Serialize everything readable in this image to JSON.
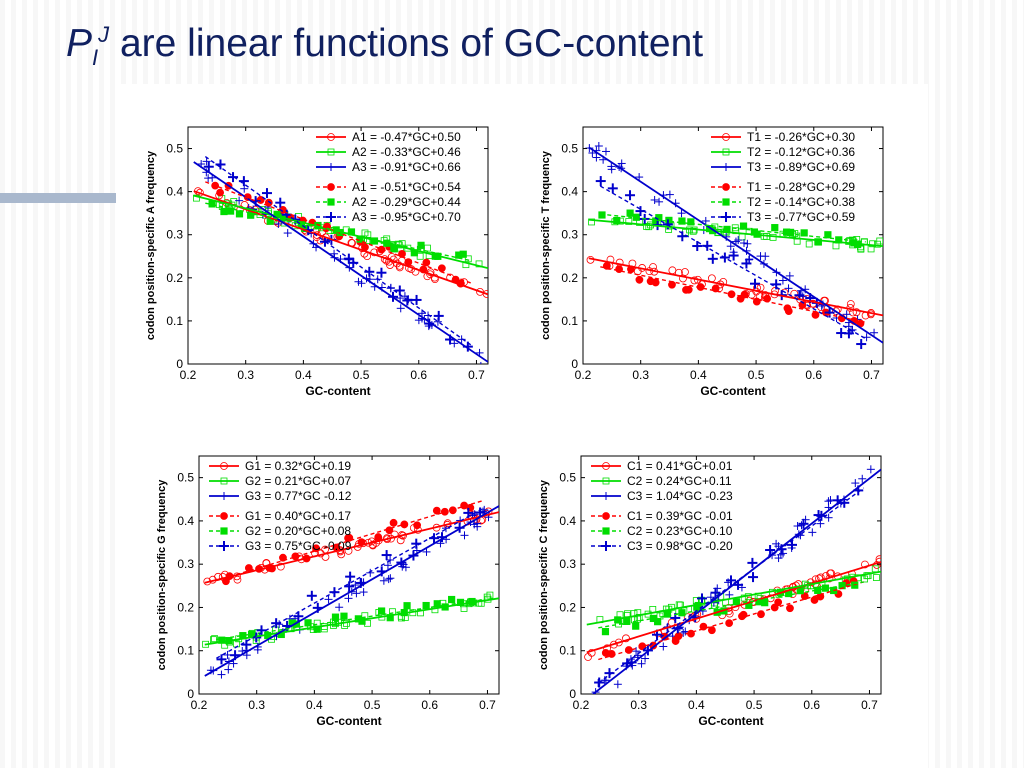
{
  "slide": {
    "title_sym": "P",
    "title_sub": "I",
    "title_sup": "J",
    "title_text": " are linear functions of GC-content"
  },
  "chart_data": [
    {
      "type": "scatter",
      "id": "A",
      "ylabel": "codon position-specific A frequency",
      "xlabel": "GC-content",
      "xlim": [
        0.2,
        0.72
      ],
      "ylim": [
        0,
        0.55
      ],
      "xticks": [
        "0.2",
        "0.3",
        "0.4",
        "0.5",
        "0.6",
        "0.7"
      ],
      "yticks": [
        "0",
        "0.1",
        "0.2",
        "0.3",
        "0.4",
        "0.5"
      ],
      "legend": "top-right",
      "series": [
        {
          "name": "A1 = -0.47*GC+0.50",
          "codon": 1,
          "set": "open",
          "color": "#ff0000",
          "slope": -0.47,
          "intercept": 0.5
        },
        {
          "name": "A2 = -0.33*GC+0.46",
          "codon": 2,
          "set": "open",
          "color": "#00dd00",
          "slope": -0.33,
          "intercept": 0.46
        },
        {
          "name": "A3 = -0.91*GC+0.66",
          "codon": 3,
          "set": "open",
          "color": "#0000cc",
          "slope": -0.91,
          "intercept": 0.66
        },
        {
          "name": "A1 = -0.51*GC+0.54",
          "codon": 1,
          "set": "filled",
          "color": "#ff0000",
          "slope": -0.51,
          "intercept": 0.54
        },
        {
          "name": "A2 = -0.29*GC+0.44",
          "codon": 2,
          "set": "filled",
          "color": "#00dd00",
          "slope": -0.29,
          "intercept": 0.44
        },
        {
          "name": "A3 = -0.95*GC+0.70",
          "codon": 3,
          "set": "filled",
          "color": "#0000cc",
          "slope": -0.95,
          "intercept": 0.7
        }
      ]
    },
    {
      "type": "scatter",
      "id": "T",
      "ylabel": "codon position-specific T frequency",
      "xlabel": "GC-content",
      "xlim": [
        0.2,
        0.72
      ],
      "ylim": [
        0,
        0.55
      ],
      "xticks": [
        "0.2",
        "0.3",
        "0.4",
        "0.5",
        "0.6",
        "0.7"
      ],
      "yticks": [
        "0",
        "0.1",
        "0.2",
        "0.3",
        "0.4",
        "0.5"
      ],
      "legend": "top-right",
      "series": [
        {
          "name": "T1 = -0.26*GC+0.30",
          "codon": 1,
          "set": "open",
          "color": "#ff0000",
          "slope": -0.26,
          "intercept": 0.3
        },
        {
          "name": "T2 = -0.12*GC+0.36",
          "codon": 2,
          "set": "open",
          "color": "#00dd00",
          "slope": -0.12,
          "intercept": 0.36
        },
        {
          "name": "T3 = -0.89*GC+0.69",
          "codon": 3,
          "set": "open",
          "color": "#0000cc",
          "slope": -0.89,
          "intercept": 0.69
        },
        {
          "name": "T1 = -0.28*GC+0.29",
          "codon": 1,
          "set": "filled",
          "color": "#ff0000",
          "slope": -0.28,
          "intercept": 0.29
        },
        {
          "name": "T2 = -0.14*GC+0.38",
          "codon": 2,
          "set": "filled",
          "color": "#00dd00",
          "slope": -0.14,
          "intercept": 0.38
        },
        {
          "name": "T3 = -0.77*GC+0.59",
          "codon": 3,
          "set": "filled",
          "color": "#0000cc",
          "slope": -0.77,
          "intercept": 0.59
        }
      ]
    },
    {
      "type": "scatter",
      "id": "G",
      "ylabel": "codon position-specific G frequency",
      "xlabel": "GC-content",
      "xlim": [
        0.2,
        0.72
      ],
      "ylim": [
        0,
        0.55
      ],
      "xticks": [
        "0.2",
        "0.3",
        "0.4",
        "0.5",
        "0.6",
        "0.7"
      ],
      "yticks": [
        "0",
        "0.1",
        "0.2",
        "0.3",
        "0.4",
        "0.5"
      ],
      "legend": "top-left",
      "series": [
        {
          "name": "G1 = 0.32*GC+0.19",
          "codon": 1,
          "set": "open",
          "color": "#ff0000",
          "slope": 0.32,
          "intercept": 0.19
        },
        {
          "name": "G2 = 0.21*GC+0.07",
          "codon": 2,
          "set": "open",
          "color": "#00dd00",
          "slope": 0.21,
          "intercept": 0.07
        },
        {
          "name": "G3 = 0.77*GC -0.12",
          "codon": 3,
          "set": "open",
          "color": "#0000cc",
          "slope": 0.77,
          "intercept": -0.12
        },
        {
          "name": "G1 = 0.40*GC+0.17",
          "codon": 1,
          "set": "filled",
          "color": "#ff0000",
          "slope": 0.4,
          "intercept": 0.17
        },
        {
          "name": "G2 = 0.20*GC+0.08",
          "codon": 2,
          "set": "filled",
          "color": "#00dd00",
          "slope": 0.2,
          "intercept": 0.08
        },
        {
          "name": "G3 = 0.75*GC -0.09",
          "codon": 3,
          "set": "filled",
          "color": "#0000cc",
          "slope": 0.75,
          "intercept": -0.09
        }
      ]
    },
    {
      "type": "scatter",
      "id": "C",
      "ylabel": "codon position-specific C frequency",
      "xlabel": "GC-content",
      "xlim": [
        0.2,
        0.72
      ],
      "ylim": [
        0,
        0.55
      ],
      "xticks": [
        "0.2",
        "0.3",
        "0.4",
        "0.5",
        "0.6",
        "0.7"
      ],
      "yticks": [
        "0",
        "0.1",
        "0.2",
        "0.3",
        "0.4",
        "0.5"
      ],
      "legend": "top-left",
      "series": [
        {
          "name": "C1 = 0.41*GC+0.01",
          "codon": 1,
          "set": "open",
          "color": "#ff0000",
          "slope": 0.41,
          "intercept": 0.01
        },
        {
          "name": "C2 = 0.24*GC+0.11",
          "codon": 2,
          "set": "open",
          "color": "#00dd00",
          "slope": 0.24,
          "intercept": 0.11
        },
        {
          "name": "C3 = 1.04*GC -0.23",
          "codon": 3,
          "set": "open",
          "color": "#0000cc",
          "slope": 1.04,
          "intercept": -0.23
        },
        {
          "name": "C1 = 0.39*GC -0.01",
          "codon": 1,
          "set": "filled",
          "color": "#ff0000",
          "slope": 0.39,
          "intercept": -0.01
        },
        {
          "name": "C2 = 0.23*GC+0.10",
          "codon": 2,
          "set": "filled",
          "color": "#00dd00",
          "slope": 0.23,
          "intercept": 0.1
        },
        {
          "name": "C3 = 0.98*GC -0.20",
          "codon": 3,
          "set": "filled",
          "color": "#0000cc",
          "slope": 0.98,
          "intercept": -0.2
        }
      ]
    }
  ]
}
